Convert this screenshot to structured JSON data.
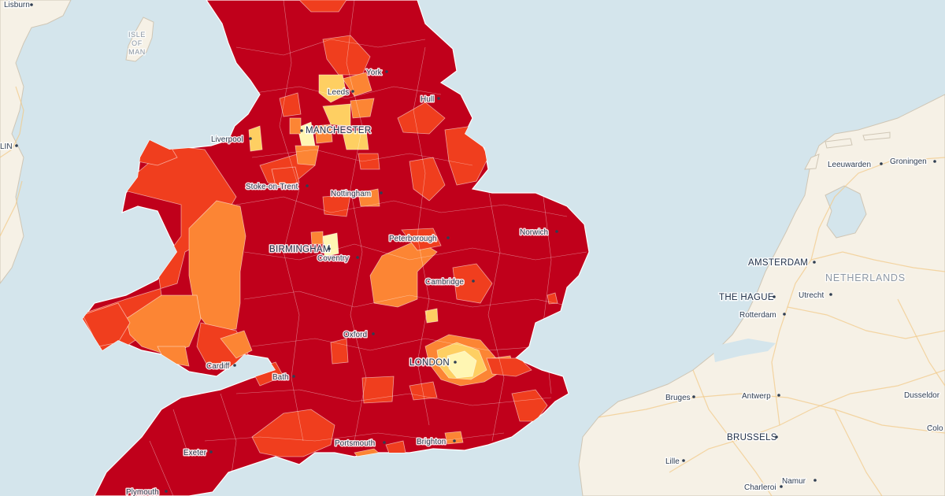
{
  "map": {
    "colors": {
      "sea": "#d4e5ec",
      "land": "#f6f1e6",
      "band_highest": "#c0001b",
      "band_high": "#f03e1e",
      "band_mid": "#fc8534",
      "band_low": "#fecf62",
      "band_lowest": "#fff6b3"
    },
    "cities": [
      {
        "id": "lisburn",
        "name": "Lisburn"
      },
      {
        "id": "isle-of-man",
        "name": "ISLE\nOF\nMAN"
      },
      {
        "id": "dublin-partial",
        "name": "LIN"
      },
      {
        "id": "york",
        "name": "York"
      },
      {
        "id": "leeds",
        "name": "Leeds"
      },
      {
        "id": "hull",
        "name": "Hull"
      },
      {
        "id": "manchester",
        "name": "MANCHESTER"
      },
      {
        "id": "liverpool",
        "name": "Liverpool"
      },
      {
        "id": "stoke",
        "name": "Stoke-on-Trent"
      },
      {
        "id": "nottingham",
        "name": "Nottingham"
      },
      {
        "id": "peterborough",
        "name": "Peterborough"
      },
      {
        "id": "norwich",
        "name": "Norwich"
      },
      {
        "id": "birmingham",
        "name": "BIRMINGHAM"
      },
      {
        "id": "coventry",
        "name": "Coventry"
      },
      {
        "id": "cambridge",
        "name": "Cambridge"
      },
      {
        "id": "oxford",
        "name": "Oxford"
      },
      {
        "id": "london",
        "name": "LONDON"
      },
      {
        "id": "cardiff",
        "name": "Cardiff"
      },
      {
        "id": "bath",
        "name": "Bath"
      },
      {
        "id": "portsmouth",
        "name": "Portsmouth"
      },
      {
        "id": "brighton",
        "name": "Brighton"
      },
      {
        "id": "exeter",
        "name": "Exeter"
      },
      {
        "id": "plymouth",
        "name": "Plymouth"
      },
      {
        "id": "leeuwarden",
        "name": "Leeuwarden"
      },
      {
        "id": "groningen",
        "name": "Groningen"
      },
      {
        "id": "amsterdam",
        "name": "AMSTERDAM"
      },
      {
        "id": "netherlands",
        "name": "NETHERLANDS"
      },
      {
        "id": "the-hague",
        "name": "THE HAGUE"
      },
      {
        "id": "utrecht",
        "name": "Utrecht"
      },
      {
        "id": "rotterdam",
        "name": "Rotterdam"
      },
      {
        "id": "bruges",
        "name": "Bruges"
      },
      {
        "id": "antwerp",
        "name": "Antwerp"
      },
      {
        "id": "dusseldorf",
        "name": "Dusseldor"
      },
      {
        "id": "brussels",
        "name": "BRUSSELS"
      },
      {
        "id": "cologne-partial",
        "name": "Colo"
      },
      {
        "id": "lille",
        "name": "Lille"
      },
      {
        "id": "namur",
        "name": "Namur"
      },
      {
        "id": "charleroi",
        "name": "Charleroi"
      }
    ]
  }
}
